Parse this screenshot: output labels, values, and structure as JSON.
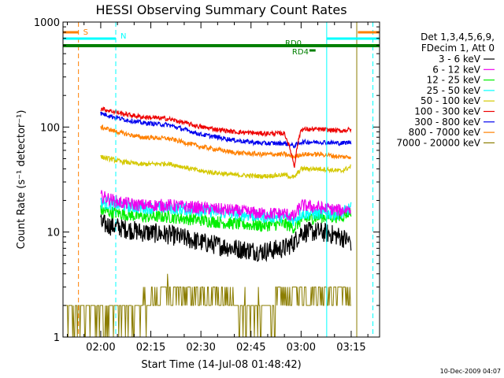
{
  "chart_data": {
    "type": "line",
    "title": "HESSI Observing Summary Count Rates",
    "xlabel": "Start Time (14-Jul-08 01:48:42)",
    "ylabel": "Count Rate (s⁻¹ detector⁻¹)",
    "yscale": "log",
    "ylim": [
      1,
      1000
    ],
    "y_ticks": [
      {
        "value": 1,
        "label": "1"
      },
      {
        "value": 10,
        "label": "10"
      },
      {
        "value": 100,
        "label": "100"
      },
      {
        "value": 1000,
        "label": "1000"
      }
    ],
    "xlim": [
      "01:48:42",
      "03:23:30"
    ],
    "x_ticks": [
      {
        "value": "02:00",
        "label": "02:00"
      },
      {
        "value": "02:15",
        "label": "02:15"
      },
      {
        "value": "02:30",
        "label": "02:30"
      },
      {
        "value": "02:45",
        "label": "02:45"
      },
      {
        "value": "03:00",
        "label": "03:00"
      },
      {
        "value": "03:15",
        "label": "03:15"
      }
    ],
    "legend": {
      "position": "right-outside",
      "header": [
        "Det 1,3,4,5,6,9,",
        "FDecim 1, Att 0"
      ],
      "entries": [
        {
          "label": "3 - 6 keV",
          "color": "#000000"
        },
        {
          "label": "6 - 12 keV",
          "color": "#ee00ee"
        },
        {
          "label": "12 - 25 keV",
          "color": "#00ee00"
        },
        {
          "label": "25 - 50 keV",
          "color": "#00ffff"
        },
        {
          "label": "50 - 100 keV",
          "color": "#d4c800"
        },
        {
          "label": "100 - 300 keV",
          "color": "#ee0000"
        },
        {
          "label": "300 - 800 keV",
          "color": "#0000ee"
        },
        {
          "label": "800 - 7000 keV",
          "color": "#ff8000"
        },
        {
          "label": "7000 - 20000 keV",
          "color": "#8b7d00"
        }
      ]
    },
    "series": [
      {
        "name": "3 - 6 keV",
        "color": "#000000",
        "x": [
          "02:00",
          "02:06",
          "02:12",
          "02:20",
          "02:30",
          "02:40",
          "02:48",
          "02:55",
          "02:58",
          "03:00",
          "03:06",
          "03:12",
          "03:15"
        ],
        "y": [
          12,
          11,
          10,
          9.5,
          8,
          7,
          6.5,
          7,
          8,
          10,
          10,
          9,
          8
        ]
      },
      {
        "name": "6 - 12 keV",
        "color": "#ee00ee",
        "x": [
          "02:00",
          "02:06",
          "02:12",
          "02:20",
          "02:30",
          "02:40",
          "02:48",
          "02:55",
          "02:58",
          "03:00",
          "03:06",
          "03:12",
          "03:15"
        ],
        "y": [
          22,
          19,
          18,
          18,
          17,
          16,
          15,
          15,
          14,
          18,
          17,
          16,
          17
        ]
      },
      {
        "name": "12 - 25 keV",
        "color": "#00ee00",
        "x": [
          "02:00",
          "02:06",
          "02:12",
          "02:20",
          "02:30",
          "02:40",
          "02:48",
          "02:55",
          "02:58",
          "03:00",
          "03:06",
          "03:12",
          "03:15"
        ],
        "y": [
          16,
          15,
          14,
          14,
          13,
          12,
          11.5,
          12,
          11,
          13,
          14,
          14,
          16
        ]
      },
      {
        "name": "25 - 50 keV",
        "color": "#00ffff",
        "x": [
          "02:00",
          "02:06",
          "02:12",
          "02:20",
          "02:30",
          "02:40",
          "02:48",
          "02:55",
          "02:58",
          "03:00",
          "03:06",
          "03:12",
          "03:15"
        ],
        "y": [
          19,
          18,
          17,
          17,
          16,
          15,
          14,
          14,
          13,
          15,
          15,
          15,
          17
        ]
      },
      {
        "name": "50 - 100 keV",
        "color": "#d4c800",
        "x": [
          "02:00",
          "02:06",
          "02:12",
          "02:20",
          "02:30",
          "02:40",
          "02:48",
          "02:55",
          "02:58",
          "03:00",
          "03:06",
          "03:12",
          "03:15"
        ],
        "y": [
          52,
          47,
          44,
          45,
          38,
          35,
          34,
          35,
          33,
          40,
          40,
          38,
          42
        ]
      },
      {
        "name": "100 - 300 keV",
        "color": "#ee0000",
        "x": [
          "02:00",
          "02:06",
          "02:12",
          "02:20",
          "02:30",
          "02:40",
          "02:48",
          "02:55",
          "02:58",
          "03:00",
          "03:06",
          "03:12",
          "03:15"
        ],
        "y": [
          150,
          135,
          125,
          120,
          100,
          90,
          87,
          87,
          42,
          95,
          95,
          92,
          95
        ]
      },
      {
        "name": "300 - 800 keV",
        "color": "#0000ee",
        "x": [
          "02:00",
          "02:06",
          "02:12",
          "02:20",
          "02:30",
          "02:40",
          "02:48",
          "02:55",
          "02:58",
          "03:00",
          "03:06",
          "03:12",
          "03:15"
        ],
        "y": [
          135,
          120,
          110,
          105,
          85,
          75,
          70,
          70,
          66,
          72,
          72,
          70,
          72
        ]
      },
      {
        "name": "800 - 7000 keV",
        "color": "#ff8000",
        "x": [
          "02:00",
          "02:06",
          "02:12",
          "02:20",
          "02:30",
          "02:40",
          "02:48",
          "02:55",
          "02:58",
          "03:00",
          "03:06",
          "03:12",
          "03:15"
        ],
        "y": [
          100,
          88,
          80,
          78,
          65,
          57,
          55,
          55,
          52,
          55,
          55,
          52,
          52
        ]
      },
      {
        "name": "7000 - 20000 keV",
        "color": "#8b7d00",
        "x": [
          "01:49",
          "02:00",
          "02:05",
          "02:10",
          "02:15",
          "02:20",
          "02:30",
          "02:40",
          "02:50",
          "02:56",
          "03:00",
          "03:05",
          "03:10",
          "03:15"
        ],
        "y": [
          1.8,
          1.8,
          1.8,
          1.8,
          2.2,
          3.0,
          2.5,
          2.0,
          1.8,
          2.5,
          2.8,
          2.8,
          2.8,
          2.5
        ]
      }
    ],
    "annotations": {
      "vertical_lines": [
        {
          "x": "01:53:20",
          "color": "#ff8000",
          "dashed": true
        },
        {
          "x": "02:04:30",
          "color": "#00ffff",
          "dashed": true
        },
        {
          "x": "03:07:40",
          "color": "#00ffff",
          "dashed": false
        },
        {
          "x": "03:16:40",
          "color": "#8b7d00",
          "dashed": false
        },
        {
          "x": "03:21:30",
          "color": "#00ffff",
          "dashed": true
        }
      ],
      "flag_bars": [
        {
          "label": "S",
          "color": "#ff8000",
          "segments": [
            [
              "01:48:42",
              "01:53:20"
            ],
            [
              "03:17:00",
              "03:23:30"
            ]
          ]
        },
        {
          "label": "N",
          "color": "#00ffff",
          "segments": [
            [
              "01:48:42",
              "02:04:30"
            ],
            [
              "03:07:40",
              "03:23:30"
            ]
          ]
        },
        {
          "label": "RD0",
          "color": "#008000",
          "segments": [
            [
              "01:48:42",
              "03:23:30"
            ]
          ]
        },
        {
          "label": "RD4",
          "color": "#008000",
          "segments": [
            [
              "03:02:30",
              "03:04:20"
            ]
          ]
        }
      ]
    }
  },
  "timestamp": "10-Dec-2009 04:07"
}
